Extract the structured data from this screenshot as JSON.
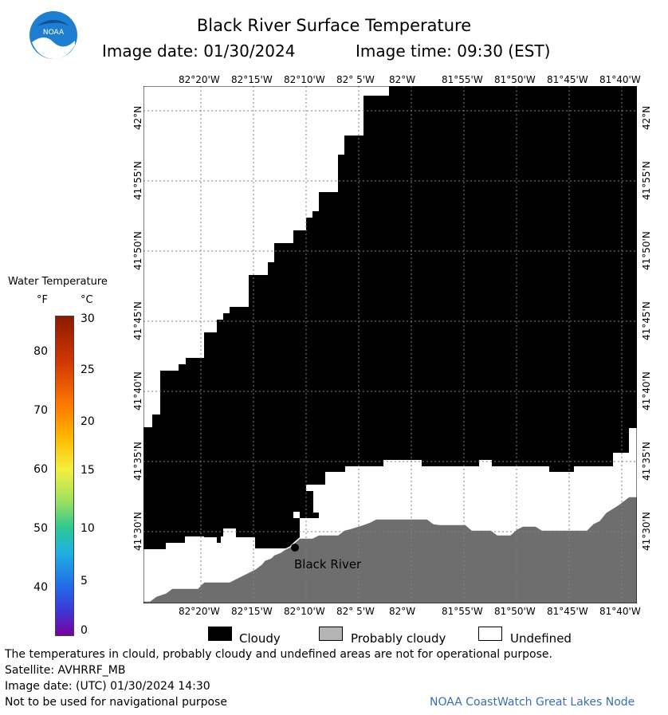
{
  "header": {
    "title": "Black River Surface Temperature",
    "image_date": "Image date: 01/30/2024",
    "image_time": "Image time: 09:30 (EST)",
    "logo_text": "NOAA"
  },
  "map": {
    "longitude_ticks": [
      "82°20'W",
      "82°15'W",
      "82°10'W",
      "82° 5'W",
      "82°W",
      "81°55'W",
      "81°50'W",
      "81°45'W",
      "81°40'W"
    ],
    "latitude_ticks": [
      "42°N",
      "41°55'N",
      "41°50'N",
      "41°45'N",
      "41°40'N",
      "41°35'N",
      "41°30'N"
    ],
    "location_label": "Black River",
    "colors": {
      "cloudy": "#000000",
      "probably_cloudy": "#6e6e6e",
      "undefined": "#ffffff",
      "grid": "#808080"
    }
  },
  "temperature_scale": {
    "title": "Water Temperature",
    "unit_f": "°F",
    "unit_c": "°C",
    "fahrenheit_ticks": [
      "80",
      "70",
      "60",
      "50",
      "40"
    ],
    "celsius_ticks": [
      "30",
      "25",
      "20",
      "15",
      "10",
      "5",
      "0"
    ]
  },
  "legend": {
    "cloudy": "Cloudy",
    "probably_cloudy": "Probably cloudy",
    "undefined": "Undefined",
    "swatch_colors": {
      "cloudy": "#000000",
      "probably_cloudy": "#b4b4b4",
      "undefined": "#ffffff"
    }
  },
  "footer": {
    "disclaimer": "The temperatures in clould, probably cloudy and undefined areas are not for operational purpose.",
    "satellite": "Satellite: AVHRRF_MB",
    "image_date_utc": "Image date: (UTC) 01/30/2024  14:30",
    "navigation_warning": "Not to be used for navigational purpose",
    "credit": "NOAA CoastWatch Great Lakes Node"
  }
}
